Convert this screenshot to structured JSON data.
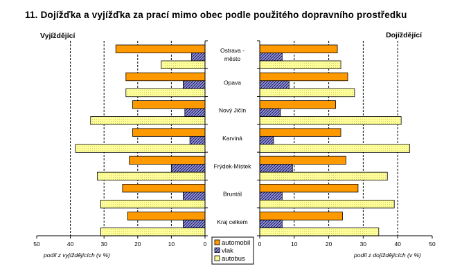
{
  "title": "11. Dojížďka a vyjížďka za prací mimo obec podle použitého dopravního prostředku",
  "chart_data": {
    "type": "bar",
    "orientation": "horizontal",
    "categories": [
      [
        "Ostrava -",
        "město"
      ],
      [
        "Opava"
      ],
      [
        "Nový Jičín"
      ],
      [
        "Karviná"
      ],
      [
        "Frýdek-Místek"
      ],
      [
        "Bruntál"
      ],
      [
        "Kraj celkem"
      ]
    ],
    "legend": [
      "automobil",
      "vlak",
      "autobus"
    ],
    "colors": {
      "automobil": "#ff9900",
      "vlak": "#9999cc",
      "autobus": "#ffff99"
    },
    "panels": [
      {
        "side": "left",
        "label": "Vyjíždějící",
        "xlabel": "podíl z vyjíždějících (v %)",
        "xlim": [
          0,
          50
        ],
        "ticks": [
          "50",
          "40",
          "30",
          "20",
          "10",
          "0"
        ],
        "series": [
          {
            "name": "automobil",
            "values": [
              26.5,
              23.5,
              21.5,
              21.5,
              22.5,
              24.5,
              23
            ]
          },
          {
            "name": "vlak",
            "values": [
              4,
              6.5,
              6,
              4.5,
              10,
              6.5,
              6.5
            ]
          },
          {
            "name": "autobus",
            "values": [
              13,
              23.5,
              34,
              38.5,
              32,
              31,
              31
            ]
          }
        ]
      },
      {
        "side": "right",
        "label": "Dojíždějící",
        "xlabel": "podíl z dojíždějících (v %)",
        "xlim": [
          0,
          50
        ],
        "ticks": [
          "0",
          "10",
          "20",
          "30",
          "40",
          "50"
        ],
        "series": [
          {
            "name": "automobil",
            "values": [
              22.5,
              25.5,
              22,
              23.5,
              25,
              28.5,
              24
            ]
          },
          {
            "name": "vlak",
            "values": [
              6.5,
              8.5,
              6,
              4,
              9.5,
              6.5,
              6.5
            ]
          },
          {
            "name": "autobus",
            "values": [
              23.5,
              27.5,
              41,
              43.5,
              37,
              39,
              34.5
            ]
          }
        ]
      }
    ]
  }
}
